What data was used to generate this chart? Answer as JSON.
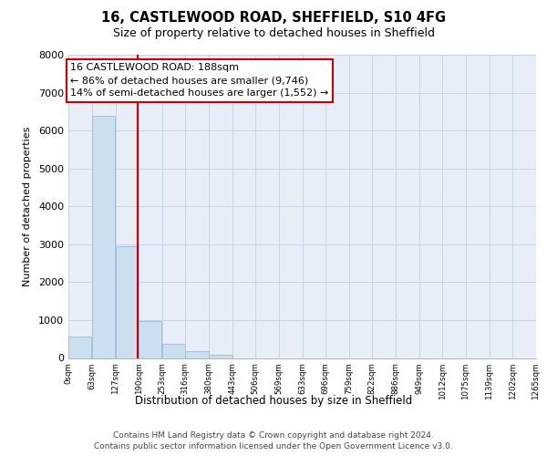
{
  "title1": "16, CASTLEWOOD ROAD, SHEFFIELD, S10 4FG",
  "title2": "Size of property relative to detached houses in Sheffield",
  "xlabel": "Distribution of detached houses by size in Sheffield",
  "ylabel": "Number of detached properties",
  "bar_edges": [
    0,
    63,
    127,
    190,
    253,
    316,
    380,
    443,
    506,
    569,
    633,
    696,
    759,
    822,
    886,
    949,
    1012,
    1075,
    1139,
    1202,
    1265
  ],
  "bar_heights": [
    560,
    6400,
    2950,
    975,
    380,
    175,
    75,
    0,
    0,
    0,
    0,
    0,
    0,
    0,
    0,
    0,
    0,
    0,
    0,
    0
  ],
  "bar_color": "#ccdff0",
  "bar_edgecolor": "#a0bcd8",
  "property_line_x": 188,
  "property_line_color": "#cc0000",
  "ylim": [
    0,
    8000
  ],
  "yticks": [
    0,
    1000,
    2000,
    3000,
    4000,
    5000,
    6000,
    7000,
    8000
  ],
  "annotation_title": "16 CASTLEWOOD ROAD: 188sqm",
  "annotation_line1": "← 86% of detached houses are smaller (9,746)",
  "annotation_line2": "14% of semi-detached houses are larger (1,552) →",
  "annotation_box_facecolor": "#ffffff",
  "annotation_box_edgecolor": "#cc0000",
  "grid_color": "#c8d4e4",
  "fig_bg_color": "#ffffff",
  "plot_bg_color": "#e8eef8",
  "footer_line1": "Contains HM Land Registry data © Crown copyright and database right 2024.",
  "footer_line2": "Contains public sector information licensed under the Open Government Licence v3.0.",
  "tick_labels": [
    "0sqm",
    "63sqm",
    "127sqm",
    "190sqm",
    "253sqm",
    "316sqm",
    "380sqm",
    "443sqm",
    "506sqm",
    "569sqm",
    "633sqm",
    "696sqm",
    "759sqm",
    "822sqm",
    "886sqm",
    "949sqm",
    "1012sqm",
    "1075sqm",
    "1139sqm",
    "1202sqm",
    "1265sqm"
  ]
}
